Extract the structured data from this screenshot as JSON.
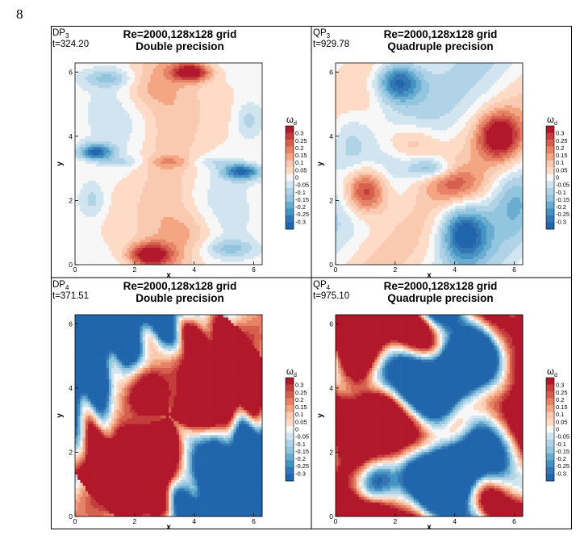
{
  "page_number": "8",
  "panels": [
    {
      "id": "DP_3",
      "label_main": "DP",
      "label_sub": "3",
      "time": "t=324.20",
      "title_line1": "Re=2000,128x128 grid",
      "title_line2": "Double precision",
      "field": "smooth-vertical-symmetric"
    },
    {
      "id": "QP_3",
      "label_main": "QP",
      "label_sub": "3",
      "time": "t=929.78",
      "title_line1": "Re=2000,128x128 grid",
      "title_line2": "Quadruple precision",
      "field": "smooth-diagonal"
    },
    {
      "id": "DP_4",
      "label_main": "DP",
      "label_sub": "4",
      "time": "t=371.51",
      "title_line1": "Re=2000,128x128 grid",
      "title_line2": "Double precision",
      "field": "saturated-diagonal"
    },
    {
      "id": "QP_4",
      "label_main": "QP",
      "label_sub": "4",
      "time": "t=975.10",
      "title_line1": "Re=2000,128x128 grid",
      "title_line2": "Quadruple precision",
      "field": "saturated-wavy"
    }
  ],
  "axes": {
    "xlabel": "x",
    "ylabel": "y",
    "xlim": [
      0,
      6.283
    ],
    "ylim": [
      0,
      6.283
    ],
    "x_ticks": [
      "0",
      "2",
      "4",
      "6"
    ],
    "y_ticks": [
      "0",
      "2",
      "4",
      "6"
    ]
  },
  "colorbar": {
    "title": "ω",
    "title_sub": "d",
    "levels": [
      "0.3",
      "0.25",
      "0.2",
      "0.15",
      "0.1",
      "0.05",
      "0",
      "-0.05",
      "-0.1",
      "-0.15",
      "-0.2",
      "-0.25",
      "-0.3"
    ],
    "colors": [
      "#b2182b",
      "#c43c3c",
      "#d6604d",
      "#e58268",
      "#f4a582",
      "#f9c9b0",
      "#fddbc7",
      "#f7f7f7",
      "#d1e5f0",
      "#b1d3e7",
      "#92c5de",
      "#6aacd0",
      "#4393c3",
      "#3575b4",
      "#2166ac"
    ]
  },
  "chart_data": [
    {
      "type": "heatmap",
      "title": "Re=2000,128x128 grid / Double precision",
      "xlabel": "x",
      "ylabel": "y",
      "xlim": [
        0,
        6.283
      ],
      "ylim": [
        0,
        6.283
      ],
      "value_range": [
        -0.3,
        0.3
      ]
    },
    {
      "type": "heatmap",
      "title": "Re=2000,128x128 grid / Quadruple precision",
      "xlabel": "x",
      "ylabel": "y",
      "xlim": [
        0,
        6.283
      ],
      "ylim": [
        0,
        6.283
      ],
      "value_range": [
        -0.3,
        0.3
      ]
    },
    {
      "type": "heatmap",
      "title": "Re=2000,128x128 grid / Double precision",
      "xlabel": "x",
      "ylabel": "y",
      "xlim": [
        0,
        6.283
      ],
      "ylim": [
        0,
        6.283
      ],
      "value_range": [
        -0.3,
        0.3
      ]
    },
    {
      "type": "heatmap",
      "title": "Re=2000,128x128 grid / Quadruple precision",
      "xlabel": "x",
      "ylabel": "y",
      "xlim": [
        0,
        6.283
      ],
      "ylim": [
        0,
        6.283
      ],
      "value_range": [
        -0.3,
        0.3
      ]
    }
  ]
}
